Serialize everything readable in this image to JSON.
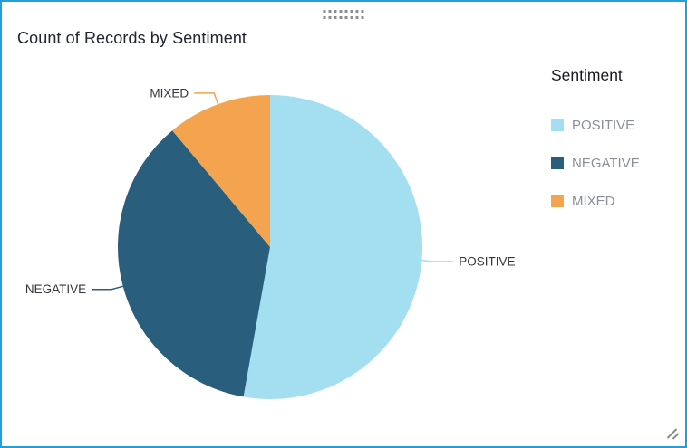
{
  "widget": {
    "title": "Count of Records by Sentiment",
    "border_color": "#219FD8",
    "background_color": "#FFFFFF"
  },
  "icons": {
    "drag_handle": "dots-grid",
    "resize_handle": "diagonal-grip-lines"
  },
  "legend": {
    "title": "Sentiment",
    "position": "right",
    "items": [
      {
        "label": "POSITIVE",
        "color": "#A4DEF1"
      },
      {
        "label": "NEGATIVE",
        "color": "#2A5E7D"
      },
      {
        "label": "MIXED",
        "color": "#F4A44E"
      }
    ]
  },
  "chart_data": {
    "type": "pie",
    "title": "Count of Records by Sentiment",
    "field": "Sentiment",
    "categories": [
      "POSITIVE",
      "NEGATIVE",
      "MIXED"
    ],
    "values": [
      52.8,
      36.1,
      11.1
    ],
    "values_unit": "percent_of_records_estimated_from_arc_angles",
    "colors": [
      "#A4DEF1",
      "#2A5E7D",
      "#F4A44E"
    ],
    "start_angle_deg": 0,
    "direction": "clockwise",
    "slice_label_callouts": true,
    "legend_title": "Sentiment",
    "legend_position": "right"
  }
}
